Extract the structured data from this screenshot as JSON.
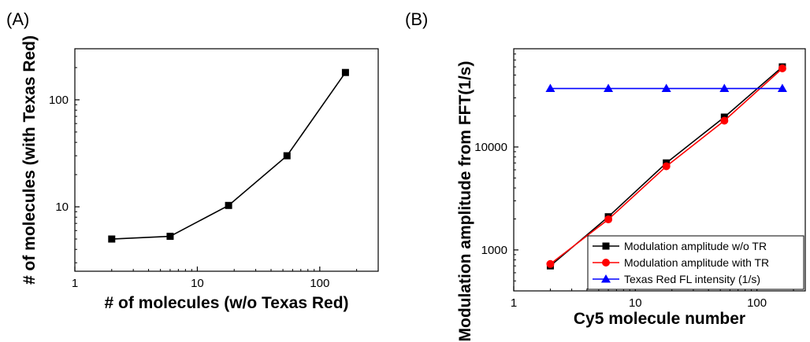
{
  "panels": [
    {
      "label": "(A)"
    },
    {
      "label": "(B)"
    }
  ],
  "chart_data": [
    {
      "type": "line",
      "xlabel": "# of molecules (w/o Texas Red)",
      "ylabel": "# of molecules (with Texas Red)",
      "xscale": "log",
      "yscale": "log",
      "xlim": [
        1,
        300
      ],
      "ylim": [
        2.5,
        300
      ],
      "xticks": [
        1,
        10,
        100
      ],
      "xtick_labels": [
        "1",
        "10",
        "100"
      ],
      "yticks": [
        10,
        100
      ],
      "ytick_labels": [
        "10",
        "100"
      ],
      "grid": false,
      "series": [
        {
          "x": [
            2,
            6,
            18,
            54,
            162
          ],
          "y": [
            5,
            5.3,
            10.3,
            30,
            180
          ],
          "color": "#000000",
          "marker": "square"
        }
      ]
    },
    {
      "type": "line",
      "xlabel": "Cy5 molecule number",
      "ylabel": "Modulation amplitude from FFT(1/s)",
      "xscale": "log",
      "yscale": "log",
      "xlim": [
        1,
        250
      ],
      "ylim": [
        400,
        90000
      ],
      "xticks": [
        1,
        10,
        100
      ],
      "xtick_labels": [
        "1",
        "10",
        "100"
      ],
      "yticks": [
        1000,
        10000
      ],
      "ytick_labels": [
        "1000",
        "10000"
      ],
      "grid": false,
      "legend_position": "bottom-right",
      "series": [
        {
          "name": "Modulation amplitude w/o TR",
          "x": [
            2,
            6,
            18,
            54,
            162
          ],
          "y": [
            700,
            2100,
            7000,
            19500,
            60000
          ],
          "color": "#000000",
          "marker": "square"
        },
        {
          "name": "Modulation amplitude with TR",
          "x": [
            2,
            6,
            18,
            54,
            162
          ],
          "y": [
            730,
            1980,
            6500,
            18000,
            58000
          ],
          "color": "#ff0000",
          "marker": "circle"
        },
        {
          "name": "Texas Red FL intensity (1/s)",
          "x": [
            2,
            6,
            18,
            54,
            162
          ],
          "y": [
            37000,
            37000,
            37000,
            37000,
            37000
          ],
          "color": "#0000ff",
          "marker": "triangle"
        }
      ]
    }
  ]
}
